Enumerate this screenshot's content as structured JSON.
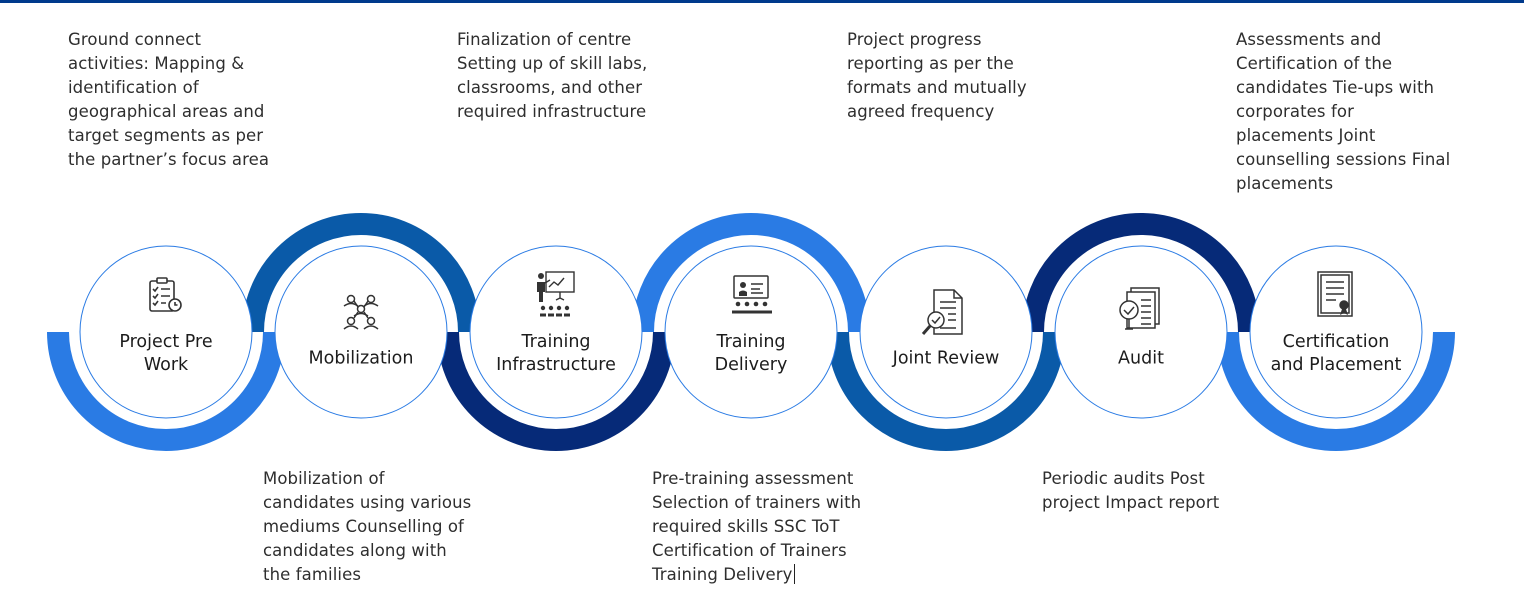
{
  "steps": [
    {
      "title": "Project Pre\nWork",
      "icon": "checklist-clock-icon"
    },
    {
      "title": "Mobilization",
      "icon": "people-network-icon"
    },
    {
      "title": "Training\nInfrastructure",
      "icon": "presenter-board-icon"
    },
    {
      "title": "Training\nDelivery",
      "icon": "classroom-monitor-icon"
    },
    {
      "title": "Joint Review",
      "icon": "document-magnifier-icon"
    },
    {
      "title": "Audit",
      "icon": "audit-checklist-icon"
    },
    {
      "title": "Certification\nand Placement",
      "icon": "certificate-icon"
    }
  ],
  "descriptions": {
    "pre_work": "Ground connect\nactivities: Mapping &\nidentification of\ngeographical areas and\ntarget segments as per\nthe partner’s focus area",
    "infrastructure": "Finalization of centre\nSetting up of skill labs,\nclassrooms, and other\nrequired infrastructure",
    "review": "Project progress\nreporting as per the\nformats and mutually\nagreed frequency",
    "certification": "Assessments and\nCertification of the\ncandidates Tie-ups with\ncorporates for\nplacements Joint\ncounselling sessions Final\nplacements",
    "mobilization": "Mobilization of\ncandidates using various\nmediums Counselling of\ncandidates along with\nthe families",
    "delivery": "Pre-training assessment\nSelection of trainers with\nrequired skills SSC ToT\nCertification of Trainers\nTraining Delivery",
    "audit": "Periodic audits Post\nproject Impact report"
  },
  "colors": {
    "light_blue": "#2a7be4",
    "mid_blue": "#0a5aa8",
    "dark_blue": "#062a78",
    "circle_border": "#2a7be4",
    "top_rule": "#003a8c"
  }
}
